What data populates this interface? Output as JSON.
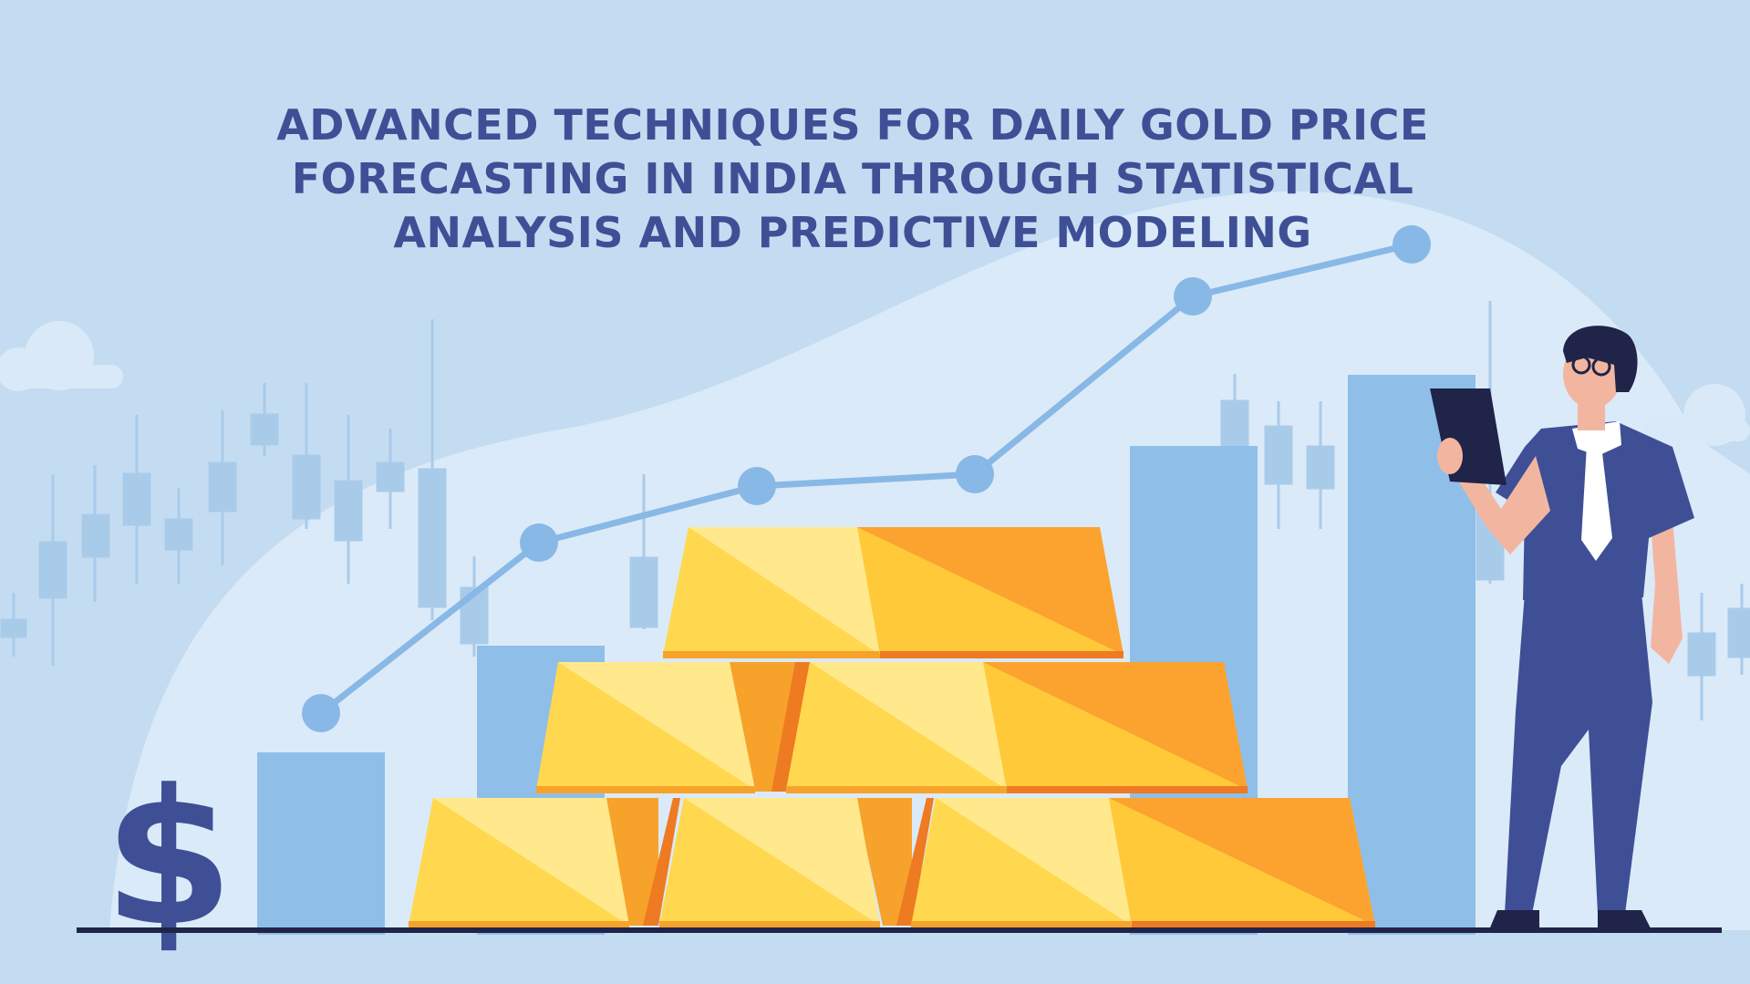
{
  "headline": {
    "lines": [
      "ADVANCED TECHNIQUES FOR DAILY GOLD PRICE",
      "FORECASTING IN INDIA THROUGH STATISTICAL",
      "ANALYSIS AND PREDICTIVE MODELING"
    ]
  },
  "illustration": {
    "icons": [
      "dollar-sign-icon",
      "gold-bars",
      "trend-line",
      "bar-chart",
      "person-with-tablet",
      "cloud"
    ],
    "colors": {
      "background": "#c4dcf1",
      "title": "#3f4f96",
      "bars": "#8fbfe8",
      "trend_line": "#88b8e6",
      "gold_light": "#ffe98c",
      "gold_mid": "#ffd84f",
      "gold_dark": "#f7a22b",
      "gold_edge": "#ee7a22",
      "ground": "#1f2448"
    }
  }
}
